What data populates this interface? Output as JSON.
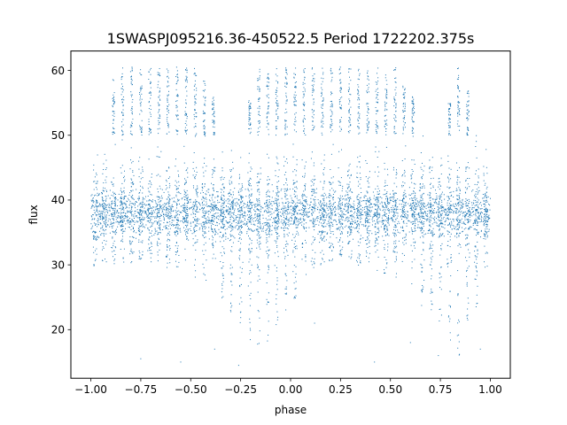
{
  "chart_data": {
    "type": "scatter",
    "title": "1SWASPJ095216.36-450522.5 Period 1722202.375s",
    "xlabel": "phase",
    "ylabel": "flux",
    "xlim": [
      -1.1,
      1.1
    ],
    "ylim": [
      12.5,
      63.0
    ],
    "xticks": [
      -1.0,
      -0.75,
      -0.5,
      -0.25,
      0.0,
      0.25,
      0.5,
      0.75,
      1.0
    ],
    "xtick_labels": [
      "−1.00",
      "−0.75",
      "−0.50",
      "−0.25",
      "0.00",
      "0.25",
      "0.50",
      "0.75",
      "1.00"
    ],
    "yticks": [
      20,
      30,
      40,
      50,
      60
    ],
    "ytick_labels": [
      "20",
      "30",
      "40",
      "50",
      "60"
    ],
    "grid": false,
    "legend": "none",
    "series": [
      {
        "color": "#1f77b4",
        "marker_size": "tiny",
        "baseline_flux": 38,
        "typical_spread": [
          33,
          43
        ],
        "envelope_points": [
          {
            "phase": -1.0,
            "flux_min": 29,
            "flux_max": 48
          },
          {
            "phase": -0.87,
            "flux_min": 30,
            "flux_max": 60.5
          },
          {
            "phase": -0.81,
            "flux_min": 29,
            "flux_max": 60.5
          },
          {
            "phase": -0.76,
            "flux_min": 31,
            "flux_max": 60.5
          },
          {
            "phase": -0.47,
            "flux_min": 28,
            "flux_max": 60.5
          },
          {
            "phase": -0.26,
            "flux_min": 21,
            "flux_max": 49
          },
          {
            "phase": -0.16,
            "flux_min": 16,
            "flux_max": 60.5
          },
          {
            "phase": 0.13,
            "flux_min": 30,
            "flux_max": 60.5
          },
          {
            "phase": 0.19,
            "flux_min": 29,
            "flux_max": 60.5
          },
          {
            "phase": 0.24,
            "flux_min": 31,
            "flux_max": 60.5
          },
          {
            "phase": 0.53,
            "flux_min": 28,
            "flux_max": 60.5
          },
          {
            "phase": 0.74,
            "flux_min": 21,
            "flux_max": 49
          },
          {
            "phase": 0.84,
            "flux_min": 16,
            "flux_max": 60.5
          },
          {
            "phase": 1.0,
            "flux_min": 29,
            "flux_max": 48
          }
        ],
        "outliers": [
          {
            "phase": -0.75,
            "flux": 15.5
          },
          {
            "phase": -0.55,
            "flux": 15
          },
          {
            "phase": -0.38,
            "flux": 17
          },
          {
            "phase": -0.26,
            "flux": 14.5
          },
          {
            "phase": 0.12,
            "flux": 21
          },
          {
            "phase": 0.42,
            "flux": 15
          },
          {
            "phase": 0.6,
            "flux": 18
          },
          {
            "phase": 0.74,
            "flux": 16
          },
          {
            "phase": 0.95,
            "flux": 17
          }
        ]
      }
    ]
  }
}
